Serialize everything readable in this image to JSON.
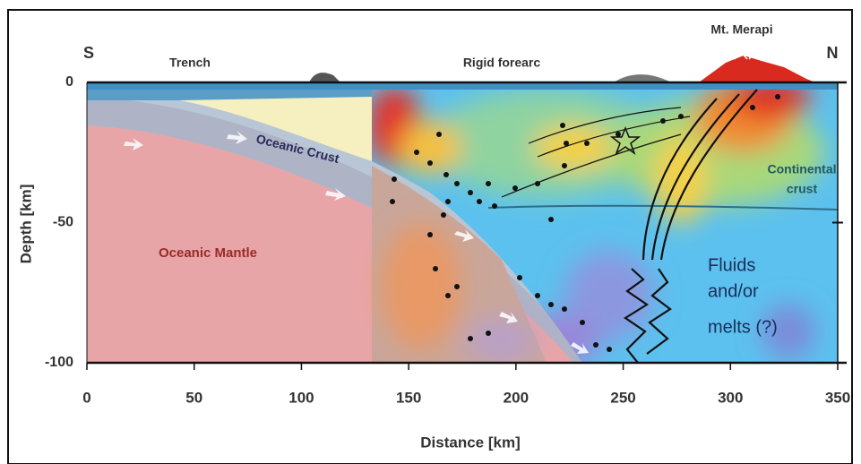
{
  "header": {
    "south": "S",
    "north": "N"
  },
  "labels": {
    "trench": "Trench",
    "forearc": "Rigid forearc",
    "volcano": "Mt. Merapi",
    "oceanic_crust": "Oceanic Crust",
    "oceanic_mantle": "Oceanic Mantle",
    "continental_crust": [
      "Continental",
      "crust"
    ],
    "fluids": [
      "Fluids",
      "and/or",
      "melts (?)"
    ]
  },
  "axes": {
    "x_label": "Distance [km]",
    "y_label": "Depth [km]",
    "xticks": [
      0,
      50,
      100,
      150,
      200,
      250,
      300,
      350
    ],
    "yticks": [
      0,
      -50,
      -100
    ]
  }
}
